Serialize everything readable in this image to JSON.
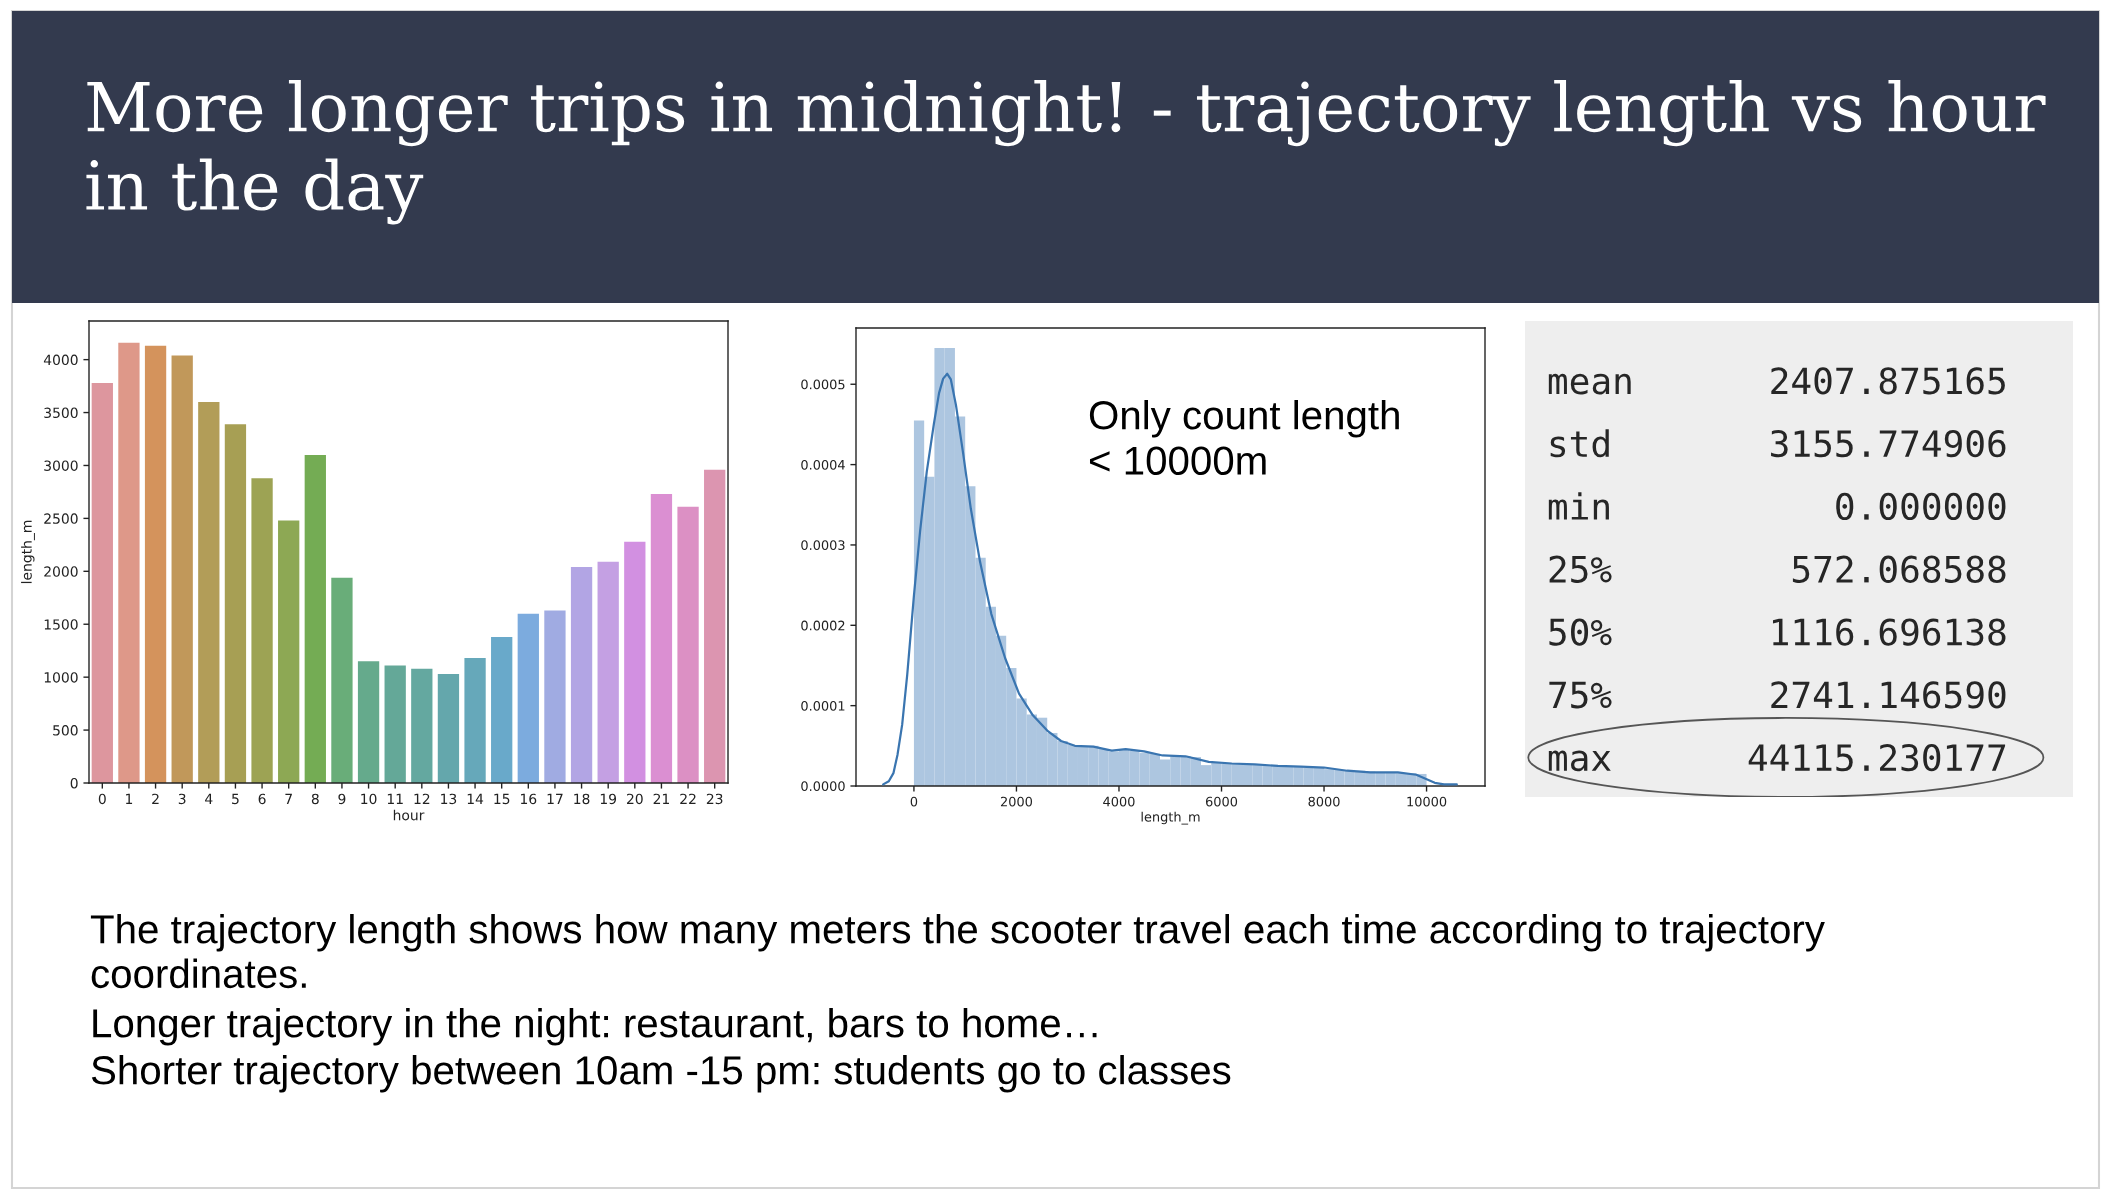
{
  "chart_data": [
    {
      "type": "bar",
      "title": "More longer trips in midnight! - trajectory length vs hour in the day",
      "annotations": [
        "The trajectory length shows how many meters the scooter travel each time according to trajectory coordinates.",
        "Longer trajectory in the night: restaurant, bars to home…",
        "Shorter trajectory between 10am -15 pm: students go to classes"
      ],
      "xlabel": "hour",
      "ylabel": "length_m",
      "categories": [
        "0",
        "1",
        "2",
        "3",
        "4",
        "5",
        "6",
        "7",
        "8",
        "9",
        "10",
        "11",
        "12",
        "13",
        "14",
        "15",
        "16",
        "17",
        "18",
        "19",
        "20",
        "21",
        "22",
        "23"
      ],
      "values": [
        3780,
        4160,
        4130,
        4040,
        3600,
        3390,
        2880,
        2480,
        3100,
        1940,
        1150,
        1110,
        1080,
        1030,
        1180,
        1380,
        1600,
        1630,
        2040,
        2090,
        2280,
        2730,
        2610,
        2960
      ],
      "colors": [
        "#dd969e",
        "#de9889",
        "#d4935c",
        "#c1985a",
        "#b29d58",
        "#a79f54",
        "#9da354",
        "#8da854",
        "#74ac54",
        "#69ad79",
        "#65aa8c",
        "#64a898",
        "#64a8a0",
        "#64a7ac",
        "#66a8ba",
        "#69a9ca",
        "#7cabde",
        "#a0abe2",
        "#b2a5e4",
        "#c4a0e3",
        "#d290e1",
        "#db8fd2",
        "#dc90c4",
        "#dc95b0"
      ],
      "ylim": [
        0,
        4365
      ],
      "yticks": [
        0,
        500,
        1000,
        1500,
        2000,
        2500,
        3000,
        3500,
        4000
      ]
    },
    {
      "type": "histogram",
      "xlabel": "length_m",
      "annotations": [
        "Only count length < 10000m"
      ],
      "xlim": [
        -1130,
        11140
      ],
      "ylim": [
        0,
        0.00057
      ],
      "xticks": [
        0,
        2000,
        4000,
        6000,
        8000,
        10000
      ],
      "yticks": [
        {
          "value": 0,
          "label": "0.0000"
        },
        0.0001,
        0.0002,
        0.0003,
        0.0004,
        0.0005
      ],
      "series": [
        {
          "type": "histogram",
          "color": "#adc6e0",
          "bins": [
            0,
            200,
            400,
            600,
            800,
            1000,
            1200,
            1400,
            1600,
            1800,
            2000,
            2200,
            2400,
            2600,
            2800,
            3000,
            3200,
            3400,
            3600,
            3800,
            4000,
            4200,
            4400,
            4600,
            4800,
            5000,
            5200,
            5400,
            5600,
            5800,
            6000,
            6200,
            6400,
            6600,
            6800,
            7000,
            7200,
            7400,
            7600,
            7800,
            8000,
            8200,
            8400,
            8600,
            8800,
            9000,
            9200,
            9400,
            9600,
            9800,
            10000
          ],
          "values": [
            0.000455,
            0.000385,
            0.000545,
            0.000545,
            0.00046,
            0.000373,
            0.000284,
            0.000223,
            0.000187,
            0.000147,
            0.000109,
            8.9e-05,
            8.5e-05,
            6.6e-05,
            5.6e-05,
            5.1e-05,
            5e-05,
            5e-05,
            4.6e-05,
            4.3e-05,
            4.5e-05,
            4.4e-05,
            4.1e-05,
            4e-05,
            3.3e-05,
            3.7e-05,
            3.7e-05,
            3.6e-05,
            2.6e-05,
            2.9e-05,
            2.8e-05,
            2.8e-05,
            2.7e-05,
            2.6e-05,
            2.5e-05,
            2.5e-05,
            2.4e-05,
            2.4e-05,
            2.3e-05,
            2.3e-05,
            2.1e-05,
            2e-05,
            2e-05,
            1.9e-05,
            1.8e-05,
            1.7e-05,
            1.7e-05,
            1.6e-05,
            1.6e-05,
            1.5e-05
          ]
        },
        {
          "type": "line",
          "color": "#3a75b0",
          "x": [
            -600,
            -490,
            -400,
            -320,
            -230,
            -130,
            0,
            120,
            250,
            390,
            490,
            570,
            650,
            720,
            820,
            960,
            1110,
            1290,
            1510,
            1780,
            2050,
            2320,
            2600,
            2870,
            3140,
            3500,
            3860,
            4130,
            4490,
            4850,
            5300,
            5750,
            6200,
            6650,
            7100,
            7550,
            8000,
            8450,
            8900,
            9440,
            9800,
            9980,
            10160,
            10340,
            10590
          ],
          "values": [
            2e-06,
            6e-06,
            1.6e-05,
            3.9e-05,
            7.6e-05,
            0.000139,
            0.000237,
            0.000317,
            0.000391,
            0.000451,
            0.000489,
            0.000507,
            0.000513,
            0.000506,
            0.000474,
            0.000414,
            0.000345,
            0.000279,
            0.000214,
            0.000159,
            0.000115,
            8.8e-05,
            6.9e-05,
            5.6e-05,
            5e-05,
            4.9e-05,
            4.4e-05,
            4.6e-05,
            4.3e-05,
            3.8e-05,
            3.7e-05,
            3e-05,
            2.8e-05,
            2.7e-05,
            2.5e-05,
            2.4e-05,
            2.3e-05,
            1.9e-05,
            1.7e-05,
            1.7e-05,
            1.4e-05,
            9e-06,
            4e-06,
            2e-06,
            2e-06
          ]
        }
      ]
    },
    {
      "type": "other",
      "categories": [
        "mean",
        "std",
        "min",
        "25%",
        "50%",
        "75%",
        "max"
      ],
      "value_labels": [
        "2407.875165",
        "3155.774906",
        "0.000000",
        "572.068588",
        "1116.696138",
        "2741.146590",
        "44115.230177"
      ]
    }
  ]
}
